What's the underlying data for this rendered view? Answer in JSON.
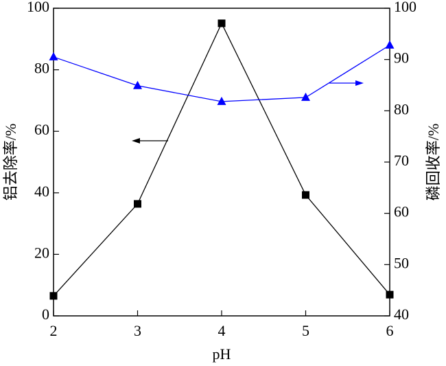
{
  "chart_data": {
    "type": "line",
    "x_label": "pH",
    "y_label": "铝去除率/%",
    "y2_label": "磷回收率/%",
    "x": [
      2,
      3,
      4,
      5,
      6
    ],
    "xlim": [
      2,
      6
    ],
    "xticks": [
      2,
      3,
      4,
      5,
      6
    ],
    "ylim": [
      0,
      100
    ],
    "yticks": [
      0,
      20,
      40,
      60,
      80,
      100
    ],
    "y2lim": [
      40,
      100
    ],
    "y2ticks": [
      40,
      50,
      60,
      70,
      80,
      90,
      100
    ],
    "series": [
      {
        "color": "#000000",
        "marker": "square",
        "values": [
          6.5,
          36.4,
          95.1,
          39.3,
          6.9
        ]
      },
      {
        "color": "#0000ff",
        "marker": "triangle",
        "axis": "y2",
        "values": [
          90.5,
          84.9,
          81.8,
          82.6,
          92.8
        ]
      }
    ]
  }
}
